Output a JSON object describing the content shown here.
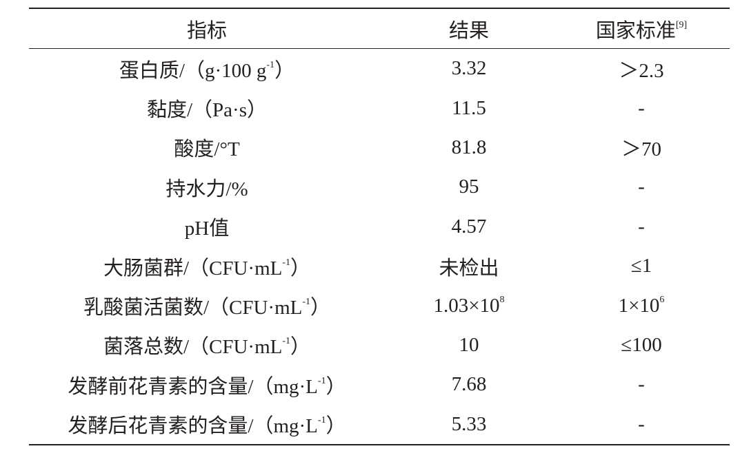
{
  "table": {
    "header": [
      [
        "指标"
      ],
      [
        "结果"
      ],
      [
        "国家标准",
        "[9]"
      ]
    ],
    "rows": [
      [
        [
          "蛋白质/（g·100 g",
          "-1",
          "）"
        ],
        [
          "3.32"
        ],
        [
          "＞2.3"
        ]
      ],
      [
        [
          "黏度/（Pa·s）"
        ],
        [
          "11.5"
        ],
        [
          "-"
        ]
      ],
      [
        [
          "酸度/°T"
        ],
        [
          "81.8"
        ],
        [
          "＞70"
        ]
      ],
      [
        [
          "持水力/%"
        ],
        [
          "95"
        ],
        [
          "-"
        ]
      ],
      [
        [
          "pH值"
        ],
        [
          "4.57"
        ],
        [
          "-"
        ]
      ],
      [
        [
          "大肠菌群/（CFU·mL",
          "-1",
          "）"
        ],
        [
          "未检出"
        ],
        [
          "≤1"
        ]
      ],
      [
        [
          "乳酸菌活菌数/（CFU·mL",
          "-1",
          "）"
        ],
        [
          "1.03×10",
          "8"
        ],
        [
          "1×10",
          "6"
        ]
      ],
      [
        [
          "菌落总数/（CFU·mL",
          "-1",
          "）"
        ],
        [
          "10"
        ],
        [
          "≤100"
        ]
      ],
      [
        [
          "发酵前花青素的含量/（mg·L",
          "-1",
          "）"
        ],
        [
          "7.68"
        ],
        [
          "-"
        ]
      ],
      [
        [
          "发酵后花青素的含量/（mg·L",
          "-1",
          "）"
        ],
        [
          "5.33"
        ],
        [
          "-"
        ]
      ]
    ]
  }
}
